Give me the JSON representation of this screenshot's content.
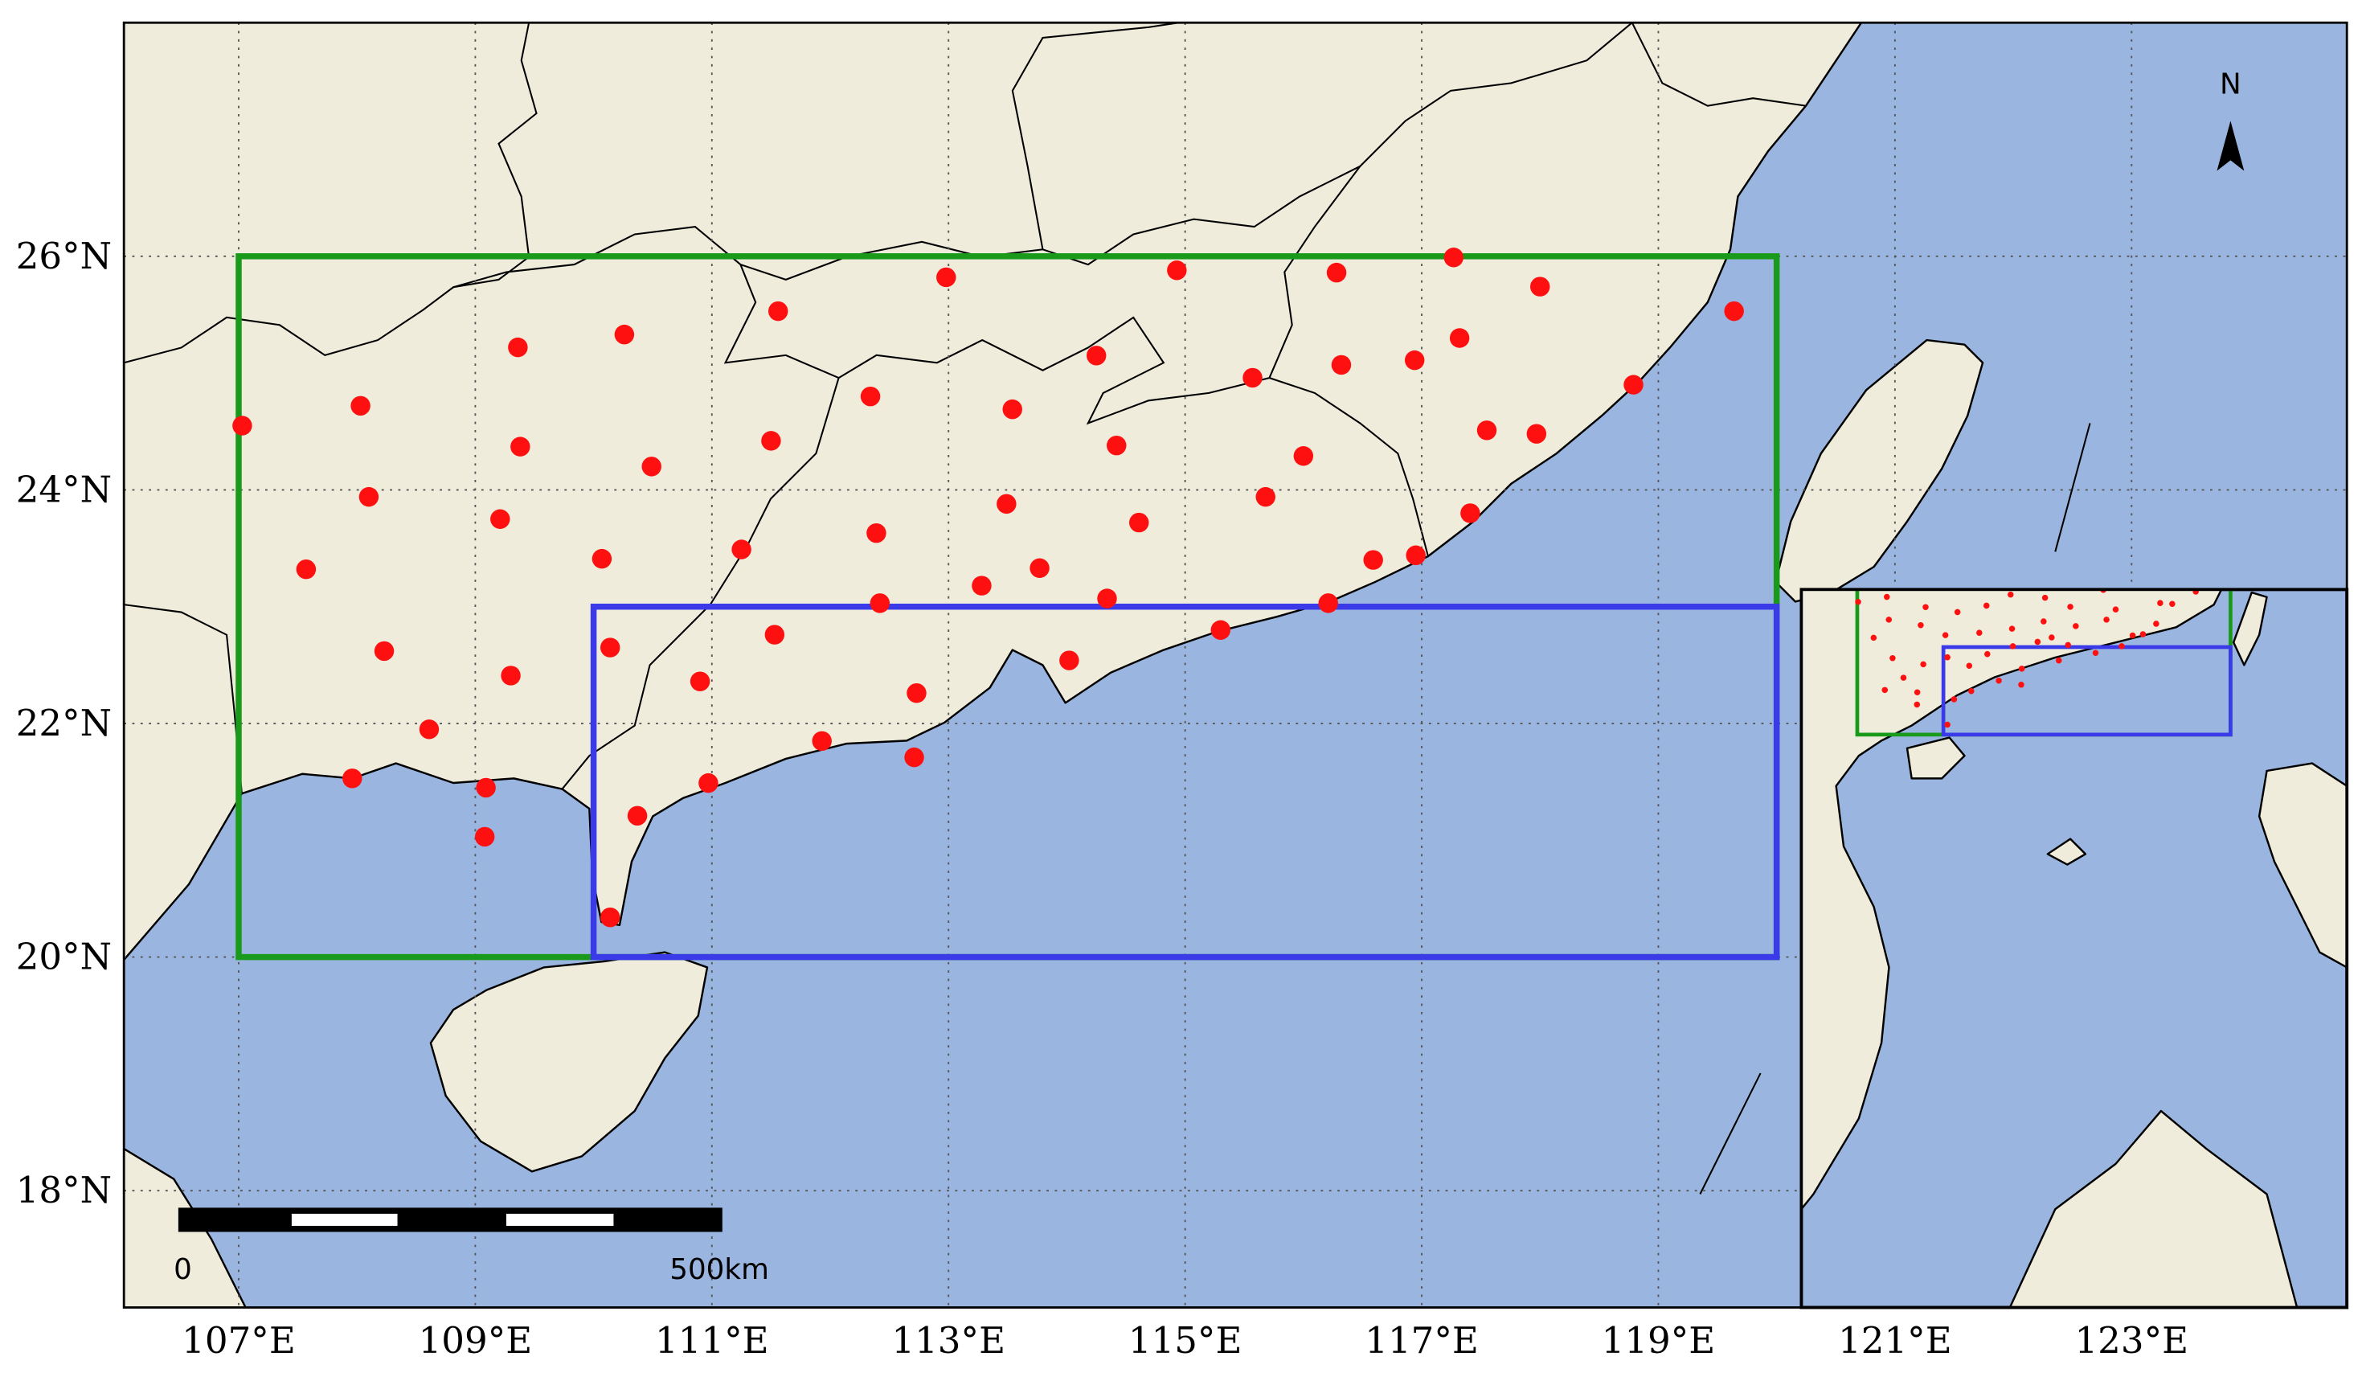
{
  "map": {
    "type": "map",
    "xlim": [
      106.03,
      124.82
    ],
    "ylim": [
      17.0,
      28.0
    ],
    "xticks": [
      {
        "value": 107,
        "label": "107°E"
      },
      {
        "value": 109,
        "label": "109°E"
      },
      {
        "value": 111,
        "label": "111°E"
      },
      {
        "value": 113,
        "label": "113°E"
      },
      {
        "value": 115,
        "label": "115°E"
      },
      {
        "value": 117,
        "label": "117°E"
      },
      {
        "value": 119,
        "label": "119°E"
      },
      {
        "value": 121,
        "label": "121°E"
      },
      {
        "value": 123,
        "label": "123°E"
      }
    ],
    "yticks": [
      {
        "value": 18,
        "label": "18°N"
      },
      {
        "value": 20,
        "label": "20°N"
      },
      {
        "value": 22,
        "label": "22°N"
      },
      {
        "value": 24,
        "label": "24°N"
      },
      {
        "value": 26,
        "label": "26°N"
      }
    ],
    "grid": true,
    "boxes": [
      {
        "color": "#1a9a1a",
        "lon": [
          107,
          120
        ],
        "lat": [
          20,
          26
        ]
      },
      {
        "color": "#3a3ae8",
        "lon": [
          110,
          120
        ],
        "lat": [
          20,
          23
        ]
      }
    ],
    "stations": {
      "color": "#ff1010",
      "lon": [
        107.03,
        108.03,
        108.1,
        107.57,
        108.23,
        108.61,
        107.96,
        109.09,
        109.08,
        109.36,
        110.26,
        109.38,
        109.21,
        110.49,
        110.07,
        109.3,
        110.14,
        110.9,
        111.25,
        110.97,
        110.37,
        110.14,
        111.56,
        111.5,
        111.53,
        111.93,
        112.98,
        112.34,
        112.39,
        112.42,
        112.73,
        112.71,
        113.54,
        113.49,
        113.28,
        113.77,
        114.02,
        114.34,
        114.25,
        114.42,
        114.61,
        114.93,
        115.3,
        115.57,
        115.68,
        116.0,
        116.28,
        116.32,
        116.21,
        116.59,
        116.95,
        116.94,
        117.27,
        117.32,
        117.41,
        117.55,
        117.97,
        118.0,
        118.79,
        119.64
      ],
      "lat": [
        24.55,
        24.72,
        23.94,
        23.32,
        22.62,
        21.95,
        21.53,
        21.45,
        21.03,
        25.22,
        25.33,
        24.37,
        23.75,
        24.2,
        23.41,
        22.41,
        22.65,
        22.36,
        23.49,
        21.49,
        21.21,
        20.34,
        25.53,
        24.42,
        22.76,
        21.85,
        25.82,
        24.8,
        23.63,
        23.03,
        22.26,
        21.71,
        24.69,
        23.88,
        23.18,
        23.33,
        22.54,
        23.07,
        25.15,
        24.38,
        23.72,
        25.88,
        22.8,
        24.96,
        23.94,
        24.29,
        25.86,
        25.07,
        23.03,
        23.4,
        23.44,
        25.11,
        25.99,
        25.3,
        23.8,
        24.51,
        24.48,
        25.74,
        24.9,
        25.53
      ]
    },
    "scale_bar": {
      "start_label": "0",
      "end_label": "500km"
    },
    "north_label": "N"
  }
}
